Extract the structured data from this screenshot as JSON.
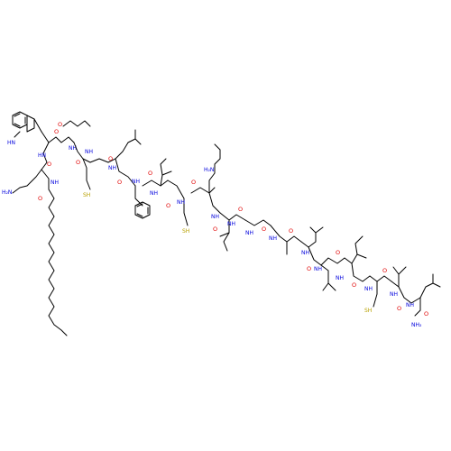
{
  "molecule": {
    "labels": {
      "nh": "NH",
      "hn": "HN",
      "o": "O",
      "sh": "SH",
      "h2n": "H₂N",
      "nh2": "NH₂"
    },
    "colors": {
      "bond": "#000000",
      "oxygen": "#e00000",
      "nitrogen": "#0000dd",
      "sulfur": "#b8a000"
    }
  }
}
